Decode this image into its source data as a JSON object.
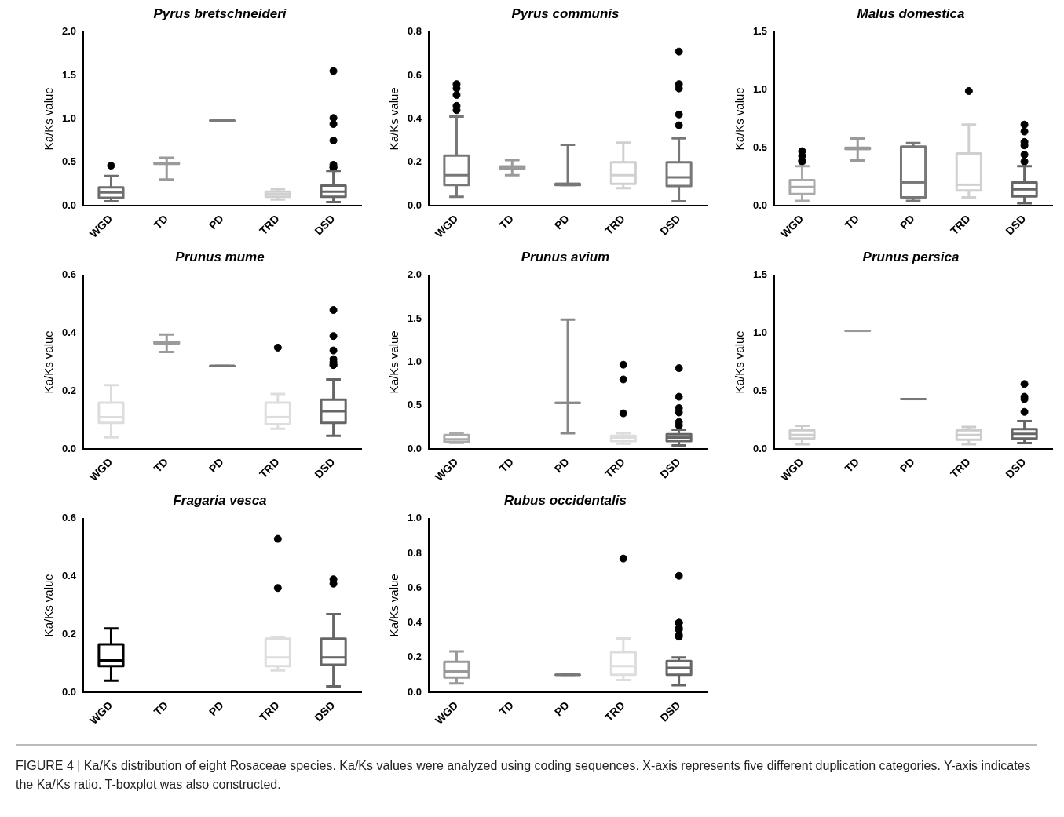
{
  "chart_data": [
    {
      "type": "box",
      "title": "Pyrus bretschneideri",
      "ylabel": "Ka/Ks value",
      "categories": [
        "WGD",
        "TD",
        "PD",
        "TRD",
        "DSD"
      ],
      "ylim": [
        0,
        2
      ],
      "yticks": [
        {
          "value": 0,
          "label": "0.0"
        },
        0.5,
        {
          "value": 1,
          "label": "1.0"
        },
        1.5,
        {
          "value": 2,
          "label": "2.0"
        }
      ],
      "colors": [
        "#6e6e6e",
        "#9a9a9a",
        "#7a7a7a",
        "#cfcfcf",
        "#666666"
      ],
      "boxes": [
        {
          "low": 0.05,
          "q1": 0.09,
          "median": 0.15,
          "q3": 0.21,
          "high": 0.34,
          "outliers": [
            0.46
          ]
        },
        {
          "low": 0.3,
          "q1": 0.48,
          "median": 0.49,
          "q3": 0.49,
          "high": 0.55
        },
        {
          "low": 0.98,
          "q1": 0.98,
          "median": 0.98,
          "q3": 0.98,
          "high": 0.98
        },
        {
          "low": 0.07,
          "q1": 0.1,
          "median": 0.13,
          "q3": 0.16,
          "high": 0.19
        },
        {
          "low": 0.04,
          "q1": 0.1,
          "median": 0.16,
          "q3": 0.23,
          "high": 0.4,
          "outliers": [
            0.44,
            0.44,
            0.47,
            0.75,
            0.94,
            1.01,
            1.55
          ]
        }
      ]
    },
    {
      "type": "box",
      "title": "Pyrus communis",
      "ylabel": "Ka/Ks value",
      "categories": [
        "WGD",
        "TD",
        "PD",
        "TRD",
        "DSD"
      ],
      "ylim": [
        0,
        0.8
      ],
      "yticks": [
        {
          "value": 0,
          "label": "0.0"
        },
        0.2,
        0.4,
        0.6,
        0.8
      ],
      "colors": [
        "#777777",
        "#9a9a9a",
        "#777777",
        "#d0d0d0",
        "#777777"
      ],
      "boxes": [
        {
          "low": 0.04,
          "q1": 0.095,
          "median": 0.14,
          "q3": 0.23,
          "high": 0.41,
          "outliers": [
            0.44,
            0.46,
            0.51,
            0.54,
            0.56
          ]
        },
        {
          "low": 0.14,
          "q1": 0.17,
          "median": 0.18,
          "q3": 0.18,
          "high": 0.21
        },
        {
          "low": 0.095,
          "q1": 0.095,
          "median": 0.1,
          "q3": 0.1,
          "high": 0.28
        },
        {
          "low": 0.08,
          "q1": 0.1,
          "median": 0.14,
          "q3": 0.2,
          "high": 0.29
        },
        {
          "low": 0.02,
          "q1": 0.09,
          "median": 0.13,
          "q3": 0.2,
          "high": 0.31,
          "outliers": [
            0.37,
            0.42,
            0.54,
            0.56,
            0.71
          ]
        }
      ]
    },
    {
      "type": "box",
      "title": "Malus domestica",
      "ylabel": "Ka/Ks value",
      "categories": [
        "WGD",
        "TD",
        "PD",
        "TRD",
        "DSD"
      ],
      "ylim": [
        0,
        1.5
      ],
      "yticks": [
        {
          "value": 0,
          "label": "0.0"
        },
        0.5,
        {
          "value": 1,
          "label": "1.0"
        },
        1.5
      ],
      "colors": [
        "#aaaaaa",
        "#9a9a9a",
        "#777777",
        "#d0d0d0",
        "#666666"
      ],
      "boxes": [
        {
          "low": 0.04,
          "q1": 0.1,
          "median": 0.16,
          "q3": 0.22,
          "high": 0.34,
          "outliers": [
            0.38,
            0.39,
            0.43,
            0.47
          ]
        },
        {
          "low": 0.39,
          "q1": 0.49,
          "median": 0.49,
          "q3": 0.5,
          "high": 0.58
        },
        {
          "low": 0.04,
          "q1": 0.07,
          "median": 0.2,
          "q3": 0.51,
          "high": 0.54
        },
        {
          "low": 0.07,
          "q1": 0.13,
          "median": 0.18,
          "q3": 0.45,
          "high": 0.7,
          "outliers": [
            0.99
          ]
        },
        {
          "low": 0.02,
          "q1": 0.08,
          "median": 0.14,
          "q3": 0.2,
          "high": 0.34,
          "outliers": [
            0.38,
            0.44,
            0.52,
            0.55,
            0.64,
            0.7
          ]
        }
      ]
    },
    {
      "type": "box",
      "title": "Prunus mume",
      "ylabel": "Ka/Ks value",
      "categories": [
        "WGD",
        "TD",
        "PD",
        "TRD",
        "DSD"
      ],
      "ylim": [
        0,
        0.6
      ],
      "yticks": [
        {
          "value": 0,
          "label": "0.0"
        },
        0.2,
        0.4,
        0.6
      ],
      "colors": [
        "#dddddd",
        "#9a9a9a",
        "#777777",
        "#dddddd",
        "#666666"
      ],
      "boxes": [
        {
          "low": 0.04,
          "q1": 0.09,
          "median": 0.11,
          "q3": 0.16,
          "high": 0.22
        },
        {
          "low": 0.335,
          "q1": 0.365,
          "median": 0.367,
          "q3": 0.37,
          "high": 0.395
        },
        {
          "low": 0.287,
          "q1": 0.287,
          "median": 0.287,
          "q3": 0.287,
          "high": 0.287
        },
        {
          "low": 0.07,
          "q1": 0.085,
          "median": 0.11,
          "q3": 0.16,
          "high": 0.19,
          "outliers": [
            0.35
          ]
        },
        {
          "low": 0.045,
          "q1": 0.09,
          "median": 0.13,
          "q3": 0.17,
          "high": 0.24,
          "outliers": [
            0.29,
            0.29,
            0.3,
            0.31,
            0.34,
            0.39,
            0.48
          ]
        }
      ]
    },
    {
      "type": "box",
      "title": "Prunus avium",
      "ylabel": "Ka/Ks value",
      "categories": [
        "WGD",
        "TD",
        "PD",
        "TRD",
        "DSD"
      ],
      "ylim": [
        0,
        2
      ],
      "yticks": [
        {
          "value": 0,
          "label": "0.0"
        },
        0.5,
        {
          "value": 1,
          "label": "1.0"
        },
        1.5,
        {
          "value": 2,
          "label": "2.0"
        }
      ],
      "colors": [
        "#aaaaaa",
        null,
        "#888888",
        "#dddddd",
        "#666666"
      ],
      "boxes": [
        {
          "low": 0.07,
          "q1": 0.08,
          "median": 0.11,
          "q3": 0.16,
          "high": 0.18
        },
        null,
        {
          "low": 0.18,
          "q1": 0.53,
          "median": 0.53,
          "q3": 0.53,
          "high": 1.49
        },
        {
          "low": 0.06,
          "q1": 0.09,
          "median": 0.13,
          "q3": 0.15,
          "high": 0.18,
          "outliers": [
            0.41,
            0.8,
            0.97
          ]
        },
        {
          "low": 0.04,
          "q1": 0.09,
          "median": 0.13,
          "q3": 0.17,
          "high": 0.22,
          "outliers": [
            0.27,
            0.31,
            0.42,
            0.47,
            0.6,
            0.93
          ]
        }
      ]
    },
    {
      "type": "box",
      "title": "Prunus persica",
      "ylabel": "Ka/Ks value",
      "categories": [
        "WGD",
        "TD",
        "PD",
        "TRD",
        "DSD"
      ],
      "ylim": [
        0,
        1.5
      ],
      "yticks": [
        {
          "value": 0,
          "label": "0.0"
        },
        0.5,
        {
          "value": 1,
          "label": "1.0"
        },
        1.5
      ],
      "colors": [
        "#cccccc",
        "#9a9a9a",
        "#777777",
        "#cccccc",
        "#666666"
      ],
      "boxes": [
        {
          "low": 0.04,
          "q1": 0.09,
          "median": 0.12,
          "q3": 0.16,
          "high": 0.2
        },
        {
          "low": 1.02,
          "q1": 1.02,
          "median": 1.02,
          "q3": 1.02,
          "high": 1.02
        },
        {
          "low": 0.43,
          "q1": 0.43,
          "median": 0.43,
          "q3": 0.43,
          "high": 0.43
        },
        {
          "low": 0.04,
          "q1": 0.08,
          "median": 0.12,
          "q3": 0.16,
          "high": 0.19
        },
        {
          "low": 0.05,
          "q1": 0.09,
          "median": 0.13,
          "q3": 0.17,
          "high": 0.24,
          "outliers": [
            0.32,
            0.43,
            0.45,
            0.56
          ]
        }
      ]
    },
    {
      "type": "box",
      "title": "Fragaria vesca",
      "ylabel": "Ka/Ks value",
      "categories": [
        "WGD",
        "TD",
        "PD",
        "TRD",
        "DSD"
      ],
      "ylim": [
        0,
        0.6
      ],
      "yticks": [
        {
          "value": 0,
          "label": "0.0"
        },
        0.2,
        0.4,
        0.6
      ],
      "colors": [
        "#000000",
        null,
        null,
        "#dddddd",
        "#666666"
      ],
      "boxes": [
        {
          "low": 0.04,
          "q1": 0.09,
          "median": 0.11,
          "q3": 0.165,
          "high": 0.22
        },
        null,
        null,
        {
          "low": 0.075,
          "q1": 0.09,
          "median": 0.12,
          "q3": 0.185,
          "high": 0.19,
          "outliers": [
            0.36,
            0.53
          ]
        },
        {
          "low": 0.02,
          "q1": 0.095,
          "median": 0.12,
          "q3": 0.185,
          "high": 0.27,
          "outliers": [
            0.375,
            0.39
          ]
        }
      ]
    },
    {
      "type": "box",
      "title": "Rubus occidentalis",
      "ylabel": "Ka/Ks value",
      "categories": [
        "WGD",
        "TD",
        "PD",
        "TRD",
        "DSD"
      ],
      "ylim": [
        0,
        1
      ],
      "yticks": [
        {
          "value": 0,
          "label": "0.0"
        },
        0.2,
        0.4,
        0.6,
        0.8,
        {
          "value": 1,
          "label": "1.0"
        }
      ],
      "colors": [
        "#999999",
        null,
        "#777777",
        "#dddddd",
        "#666666"
      ],
      "boxes": [
        {
          "low": 0.05,
          "q1": 0.085,
          "median": 0.12,
          "q3": 0.175,
          "high": 0.235
        },
        null,
        {
          "low": 0.1,
          "q1": 0.1,
          "median": 0.1,
          "q3": 0.1,
          "high": 0.1
        },
        {
          "low": 0.07,
          "q1": 0.1,
          "median": 0.15,
          "q3": 0.23,
          "high": 0.31,
          "outliers": [
            0.77
          ]
        },
        {
          "low": 0.04,
          "q1": 0.1,
          "median": 0.14,
          "q3": 0.18,
          "high": 0.2,
          "outliers": [
            0.32,
            0.33,
            0.36,
            0.37,
            0.4,
            0.4,
            0.67
          ]
        }
      ],
      "annotations": [
        "FIGURE 4 | Ka/Ks distribution of eight Rosaceae species. Ka/Ks values were analyzed using coding sequences. X-axis represents five different duplication categories. Y-axis indicates the Ka/Ks ratio. T-boxplot was also constructed."
      ]
    }
  ]
}
